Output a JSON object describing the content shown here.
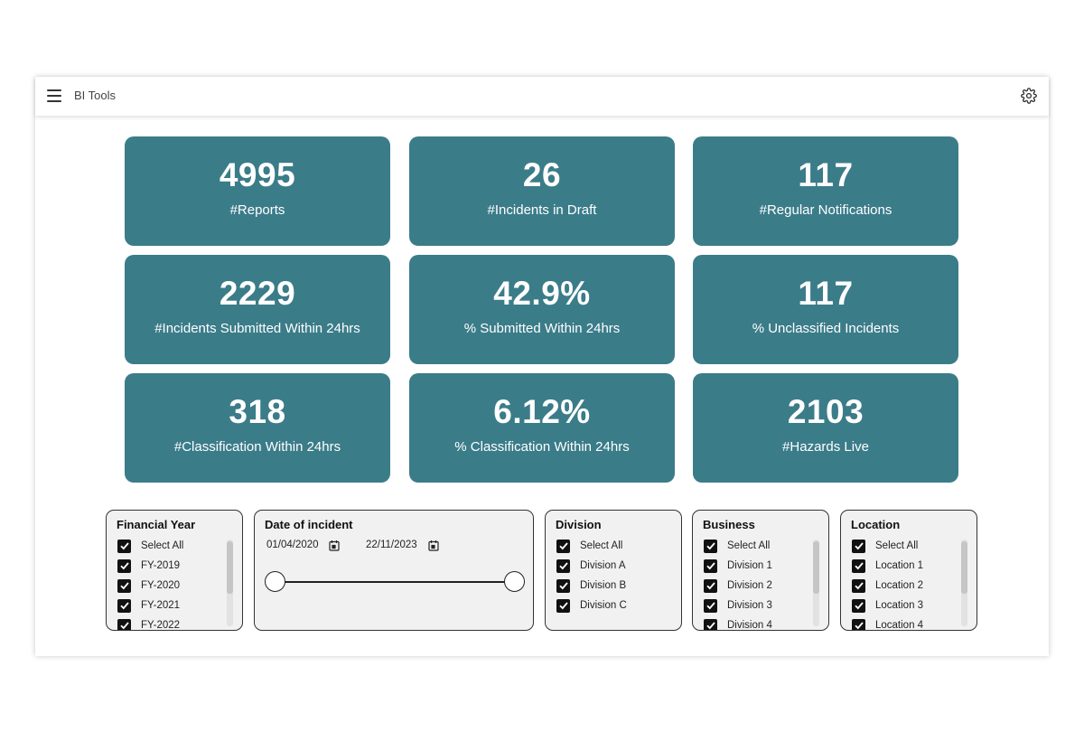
{
  "header": {
    "title": "BI Tools"
  },
  "tiles": [
    {
      "value": "4995",
      "label": "#Reports"
    },
    {
      "value": "26",
      "label": "#Incidents in Draft"
    },
    {
      "value": "117",
      "label": "#Regular Notifications"
    },
    {
      "value": "2229",
      "label": "#Incidents Submitted Within 24hrs"
    },
    {
      "value": "42.9%",
      "label": "% Submitted Within 24hrs"
    },
    {
      "value": "117",
      "label": "% Unclassified Incidents"
    },
    {
      "value": "318",
      "label": "#Classification Within 24hrs"
    },
    {
      "value": "6.12%",
      "label": "% Classification Within 24hrs"
    },
    {
      "value": "2103",
      "label": "#Hazards Live"
    }
  ],
  "filters": {
    "financial_year": {
      "title": "Financial Year",
      "options": [
        "Select All",
        "FY-2019",
        "FY-2020",
        "FY-2021",
        "FY-2022"
      ]
    },
    "date": {
      "title": "Date of incident",
      "start": "01/04/2020",
      "end": "22/11/2023"
    },
    "division": {
      "title": "Division",
      "options": [
        "Select All",
        "Division A",
        "Division B",
        "Division C"
      ]
    },
    "business": {
      "title": "Business",
      "options": [
        "Select All",
        "Division 1",
        "Division 2",
        "Division 3",
        "Division 4"
      ]
    },
    "location": {
      "title": "Location",
      "options": [
        "Select All",
        "Location 1",
        "Location 2",
        "Location 3",
        "Location 4"
      ]
    }
  },
  "colors": {
    "tile": "#3b7c89",
    "panel": "#f1f1f1"
  },
  "icons": {
    "menu": "hamburger-icon",
    "settings": "gear-icon",
    "calendar": "calendar-icon",
    "check": "checkmark-icon"
  }
}
